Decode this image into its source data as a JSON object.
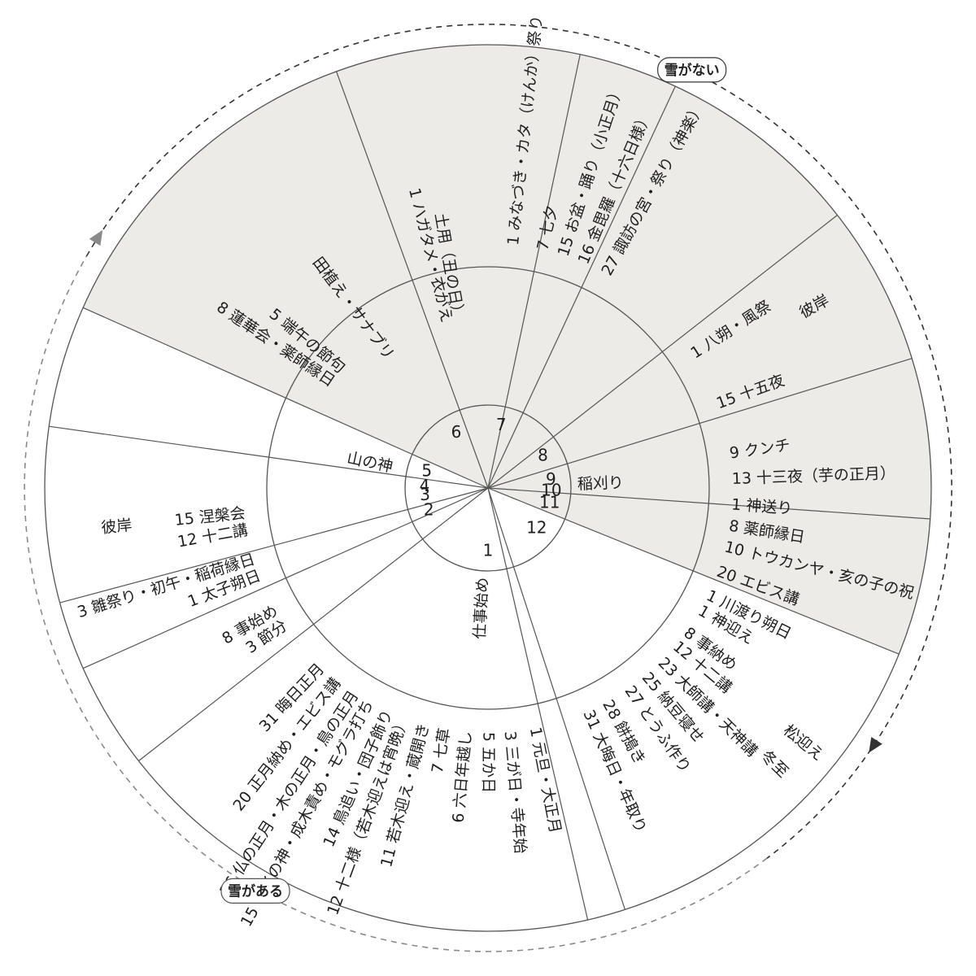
{
  "months": [
    {
      "label": "1",
      "deg": 90
    },
    {
      "label": "2",
      "deg": 159
    },
    {
      "label": "3",
      "deg": 173
    },
    {
      "label": "4",
      "deg": 181
    },
    {
      "label": "5",
      "deg": 195
    },
    {
      "label": "6",
      "deg": 240
    },
    {
      "label": "7",
      "deg": 282
    },
    {
      "label": "8",
      "deg": 330
    },
    {
      "label": "9",
      "deg": 353
    },
    {
      "label": "10",
      "deg": 3
    },
    {
      "label": "11",
      "deg": 14
    },
    {
      "label": "12",
      "deg": 40
    }
  ],
  "events": [
    {
      "text": "1 元旦・大正月",
      "deg": 79,
      "r0": 300
    },
    {
      "text": "3 三が日・寺年始",
      "deg": 85,
      "r0": 300
    },
    {
      "text": "5 五か日",
      "deg": 90,
      "r0": 300
    },
    {
      "text": "6 六日年越し",
      "deg": 95,
      "r0": 300
    },
    {
      "text": "7 七草",
      "deg": 100,
      "r0": 300
    },
    {
      "text": "11 若木迎え・蔵開き",
      "deg": 105,
      "r0": 300
    },
    {
      "text": "12 十二様（若木迎えは宵晩）",
      "deg": 110,
      "r0": 300
    },
    {
      "text": "14 鳥追い・団子飾り",
      "deg": 114,
      "r0": 300
    },
    {
      "text": "15 サイの神・成木責め・モグラ打ち",
      "deg": 119,
      "r0": 300
    },
    {
      "text": "16 仏の正月・木の正月・鳥の正月",
      "deg": 123,
      "r0": 300
    },
    {
      "text": "20 正月納め・エビス講",
      "deg": 128,
      "r0": 300
    },
    {
      "text": "31 晦日正月",
      "deg": 133,
      "r0": 300
    },
    {
      "text": "3 節分",
      "deg": 146,
      "r0": 300
    },
    {
      "text": "8 事始め",
      "deg": 150,
      "r0": 300
    },
    {
      "text": "1 太子朔日",
      "deg": 159,
      "r0": 300
    },
    {
      "text": "3 雛祭り・初午・稲荷縁日",
      "deg": 163,
      "r0": 300
    },
    {
      "text": "12 十二講",
      "deg": 170,
      "r0": 300
    },
    {
      "text": "15 涅槃会",
      "deg": 174,
      "r0": 300
    },
    {
      "text": "彼岸",
      "deg": 174,
      "r0": 440
    },
    {
      "text": "8 蓮華会・薬師縁日",
      "deg": 214,
      "r0": 230
    },
    {
      "text": "5 端午の節句",
      "deg": 219,
      "r0": 230
    },
    {
      "text": "1 ハガタメ・衣がえ",
      "deg": 256,
      "r0": 210
    },
    {
      "text": "1 みなづき・カタ（けんか）祭り",
      "deg": 276,
      "r0": 300
    },
    {
      "text": "7 七夕",
      "deg": 283,
      "r0": 300
    },
    {
      "text": "15 お盆・踊り（小正月）",
      "deg": 288,
      "r0": 300
    },
    {
      "text": "16 金毘羅（十六日様）",
      "deg": 293,
      "r0": 300
    },
    {
      "text": "27 諏訪の宮・祭り（神楽）",
      "deg": 299,
      "r0": 300
    },
    {
      "text": "15 十五夜",
      "deg": 340,
      "r0": 300
    },
    {
      "text": "1 八朔・風祭",
      "deg": 327,
      "r0": 300
    },
    {
      "text": "9 クンチ",
      "deg": 352,
      "r0": 300
    },
    {
      "text": "13 十三夜（芋の正月）",
      "deg": 358,
      "r0": 300
    },
    {
      "text": "1 神送り",
      "deg": 4,
      "r0": 300
    },
    {
      "text": "8 薬師縁日",
      "deg": 9,
      "r0": 300
    },
    {
      "text": "10 トウカンヤ・亥の子の祝",
      "deg": 14,
      "r0": 300
    },
    {
      "text": "20 エビス講",
      "deg": 20,
      "r0": 300
    },
    {
      "text": "1 川渡り朔日",
      "deg": 26,
      "r0": 300
    },
    {
      "text": "1 神迎え",
      "deg": 30,
      "r0": 300
    },
    {
      "text": "8 事納め",
      "deg": 36,
      "r0": 300
    },
    {
      "text": "12 十二講",
      "deg": 40,
      "r0": 300
    },
    {
      "text": "23 大師講・天神講",
      "deg": 45,
      "r0": 300
    },
    {
      "text": "25 納豆寝せ",
      "deg": 50,
      "r0": 300
    },
    {
      "text": "27 とうふ作り",
      "deg": 55,
      "r0": 300
    },
    {
      "text": "28 餅搗き",
      "deg": 61,
      "r0": 300
    },
    {
      "text": "31 大晦日・年取り",
      "deg": 66,
      "r0": 300
    }
  ],
  "season_labels": [
    {
      "text": "彼岸",
      "deg": 331,
      "r0": 440
    },
    {
      "text": "冬至",
      "deg": 44,
      "r0": 470
    },
    {
      "text": "松迎え",
      "deg": 39,
      "r0": 470
    },
    {
      "text": "山の神",
      "deg": 192,
      "r0": 120
    },
    {
      "text": "田植え・サナブリ",
      "deg": 233,
      "r0": 200
    },
    {
      "text": "土用（丑の日）",
      "deg": 260,
      "r0": 210
    },
    {
      "text": "稲刈り",
      "deg": 358,
      "r0": 110
    },
    {
      "text": "仕事始め",
      "deg": 93,
      "r0": 110
    }
  ],
  "snow": {
    "none_label": "雪がない",
    "some_label": "雪がある",
    "none_color": "#333333",
    "some_color": "#8a8a8a"
  },
  "shade_color": "#ecebe8",
  "line_color": "#555555"
}
